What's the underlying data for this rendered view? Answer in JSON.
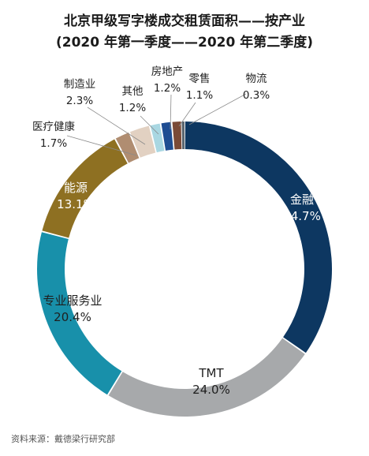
{
  "chart_data": {
    "type": "donut",
    "title": "北京甲级写字楼成交租赁面积——按产业",
    "subtitle": "(2020 年第一季度——2020 年第二季度)",
    "source": "资料来源：戴德梁行研究部",
    "slices": [
      {
        "label": "金融",
        "value_text": "34.7%",
        "value": 34.7,
        "color": "#0d3761",
        "label_color": "#ffffff"
      },
      {
        "label": "TMT",
        "value_text": "24.0%",
        "value": 24.0,
        "color": "#a7a9ab",
        "label_color": "#1f1f1f"
      },
      {
        "label": "专业服务业",
        "value_text": "20.4%",
        "value": 20.4,
        "color": "#1890aa",
        "label_color": "#1f1f1f"
      },
      {
        "label": "能源",
        "value_text": "13.1%",
        "value": 13.1,
        "color": "#8e7022",
        "label_color": "#ffffff"
      },
      {
        "label": "医疗健康",
        "value_text": "1.7%",
        "value": 1.7,
        "color": "#b08d71",
        "label_color": "#222222"
      },
      {
        "label": "制造业",
        "value_text": "2.3%",
        "value": 2.3,
        "color": "#e2d1c2",
        "label_color": "#222222"
      },
      {
        "label": "其他",
        "value_text": "1.2%",
        "value": 1.2,
        "color": "#a9d7e2",
        "label_color": "#222222"
      },
      {
        "label": "房地产",
        "value_text": "1.2%",
        "value": 1.2,
        "color": "#1e4d92",
        "label_color": "#222222"
      },
      {
        "label": "零售",
        "value_text": "1.1%",
        "value": 1.1,
        "color": "#7a4a37",
        "label_color": "#222222"
      },
      {
        "label": "物流",
        "value_text": "0.3%",
        "value": 0.3,
        "color": "#5b6770",
        "label_color": "#222222"
      }
    ]
  }
}
